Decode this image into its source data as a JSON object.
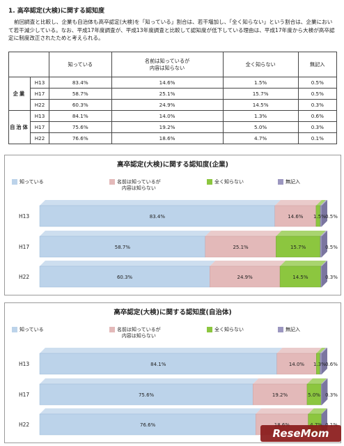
{
  "heading": "1. 高卒認定(大検)に関する認知度",
  "paragraph": "前回調査と比較し、企業も自治体も高卒認定(大検)を「知っている」割合は、若干増加し、「全く知らない」という割合は、企業において若干減少している。なお、平成17年度調査が、平成13年度調査と比較して認知度が低下している理由は、平成17年度から大検が高卒認定に制度改正されたためと考えられる。",
  "table": {
    "headers": [
      "知っている",
      "名前は知っているが\n内容は知らない",
      "全く知らない",
      "無記入"
    ],
    "groups": [
      {
        "label": "企業",
        "rows": [
          {
            "year": "H13",
            "cells": [
              "83.4%",
              "14.6%",
              "1.5%",
              "0.5%"
            ]
          },
          {
            "year": "H17",
            "cells": [
              "58.7%",
              "25.1%",
              "15.7%",
              "0.5%"
            ]
          },
          {
            "year": "H22",
            "cells": [
              "60.3%",
              "24.9%",
              "14.5%",
              "0.3%"
            ]
          }
        ]
      },
      {
        "label": "自治体",
        "rows": [
          {
            "year": "H13",
            "cells": [
              "84.1%",
              "14.0%",
              "1.3%",
              "0.6%"
            ]
          },
          {
            "year": "H17",
            "cells": [
              "75.6%",
              "19.2%",
              "5.0%",
              "0.3%"
            ]
          },
          {
            "year": "H22",
            "cells": [
              "76.6%",
              "18.6%",
              "4.7%",
              "0.1%"
            ]
          }
        ]
      }
    ]
  },
  "logo_text": "ReseMom",
  "colors": {
    "know": "#bcd3ea",
    "name_only": "#e3b9b9",
    "not_know": "#8cc63f",
    "blank": "#9c97c0"
  },
  "chart_data": [
    {
      "type": "bar",
      "orientation": "horizontal-stacked-100",
      "title": "高卒認定(大検)に関する認知度(企業)",
      "categories": [
        "H13",
        "H17",
        "H22"
      ],
      "legend_position": "top",
      "series": [
        {
          "name": "知っている",
          "values": [
            83.4,
            58.7,
            60.3
          ],
          "labels": [
            "83.4%",
            "58.7%",
            "60.3%"
          ]
        },
        {
          "name": "名前は知っているが\n内容は知らない",
          "values": [
            14.6,
            25.1,
            24.9
          ],
          "labels": [
            "14.6%",
            "25.1%",
            "24.9%"
          ]
        },
        {
          "name": "全く知らない",
          "values": [
            1.5,
            15.7,
            14.5
          ],
          "labels": [
            "1.5%",
            "15.7%",
            "14.5%"
          ]
        },
        {
          "name": "無記入",
          "values": [
            0.5,
            0.5,
            0.3
          ],
          "labels": [
            "0.5%",
            "0.5%",
            "0.3%"
          ]
        }
      ]
    },
    {
      "type": "bar",
      "orientation": "horizontal-stacked-100",
      "title": "高卒認定(大検)に関する認知度(自治体)",
      "categories": [
        "H13",
        "H17",
        "H22"
      ],
      "legend_position": "top",
      "series": [
        {
          "name": "知っている",
          "values": [
            84.1,
            75.6,
            76.6
          ],
          "labels": [
            "84.1%",
            "75.6%",
            "76.6%"
          ]
        },
        {
          "name": "名前は知っているが\n内容は知らない",
          "values": [
            14.0,
            19.2,
            18.6
          ],
          "labels": [
            "14.0%",
            "19.2%",
            "18.6%"
          ]
        },
        {
          "name": "全く知らない",
          "values": [
            1.3,
            5.0,
            4.7
          ],
          "labels": [
            "1.3%",
            "5.0%",
            "4.7%"
          ]
        },
        {
          "name": "無記入",
          "values": [
            0.6,
            0.3,
            0.1
          ],
          "labels": [
            "0.6%",
            "0.3%",
            "0.1%"
          ]
        }
      ]
    }
  ]
}
